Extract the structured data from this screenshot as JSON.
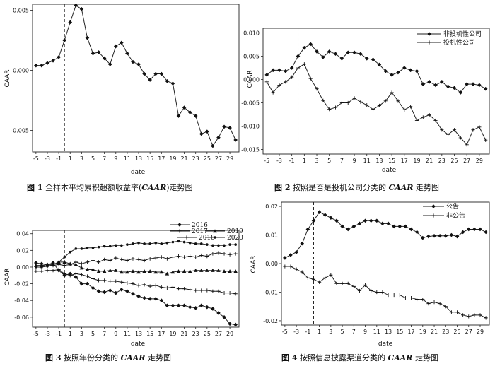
{
  "chart_data": [
    {
      "type": "line",
      "ylabel": "CAAR",
      "xlabel": "date",
      "x": [
        -5,
        -4,
        -3,
        -2,
        -1,
        0,
        1,
        2,
        3,
        4,
        5,
        6,
        7,
        8,
        9,
        10,
        11,
        12,
        13,
        14,
        15,
        16,
        17,
        18,
        19,
        20,
        21,
        22,
        23,
        24,
        25,
        26,
        27,
        28,
        29,
        30
      ],
      "xticks": [
        -5,
        -3,
        -1,
        1,
        3,
        5,
        7,
        9,
        11,
        13,
        15,
        17,
        19,
        21,
        23,
        25,
        27,
        29
      ],
      "ylim": [
        -0.0068,
        0.0055
      ],
      "yticks": [
        0.005,
        0.0,
        -0.005
      ],
      "ytick_labels": [
        "0.005",
        "0.000",
        "-0.005"
      ],
      "event_line_x": 0,
      "series": [
        {
          "marker": "diamond",
          "values": [
            0.0004,
            0.0004,
            0.0006,
            0.0008,
            0.0011,
            0.0025,
            0.004,
            0.0054,
            0.0051,
            0.0027,
            0.0014,
            0.0015,
            0.001,
            0.0005,
            0.002,
            0.0023,
            0.0014,
            0.0007,
            0.0005,
            -0.0003,
            -0.0008,
            -0.0003,
            -0.0003,
            -0.0009,
            -0.0011,
            -0.0038,
            -0.0031,
            -0.0035,
            -0.0038,
            -0.0053,
            -0.0051,
            -0.0063,
            -0.0056,
            -0.0047,
            -0.0048,
            -0.0058
          ]
        }
      ],
      "caption": {
        "number": "图 1",
        "text_a": "全样本平均累积超额收益率(",
        "italic": "CAAR",
        "text_b": ")走势图"
      }
    },
    {
      "type": "line",
      "ylabel": "CAAR",
      "xlabel": "date",
      "x": [
        -5,
        -4,
        -3,
        -2,
        -1,
        0,
        1,
        2,
        3,
        4,
        5,
        6,
        7,
        8,
        9,
        10,
        11,
        12,
        13,
        14,
        15,
        16,
        17,
        18,
        19,
        20,
        21,
        22,
        23,
        24,
        25,
        26,
        27,
        28,
        29,
        30
      ],
      "xticks": [
        -5,
        -3,
        -1,
        1,
        3,
        5,
        7,
        9,
        11,
        13,
        15,
        17,
        19,
        21,
        23,
        25,
        27,
        29
      ],
      "ylim": [
        -0.016,
        0.011
      ],
      "yticks": [
        0.01,
        0.005,
        0.0,
        -0.005,
        -0.01,
        -0.015
      ],
      "ytick_labels": [
        "0.010",
        "0.005",
        "0.000",
        "-0.005",
        "-0.010",
        "-0.015"
      ],
      "event_line_x": 0,
      "legend_position": "top-right",
      "series": [
        {
          "name": "非投机性公司",
          "marker": "diamond",
          "values": [
            0.001,
            0.002,
            0.002,
            0.0018,
            0.0025,
            0.005,
            0.0068,
            0.0076,
            0.006,
            0.0048,
            0.006,
            0.0055,
            0.0045,
            0.0058,
            0.0058,
            0.0055,
            0.0045,
            0.0043,
            0.0032,
            0.0018,
            0.001,
            0.0015,
            0.0025,
            0.002,
            0.0018,
            -0.001,
            -0.0005,
            -0.0012,
            -0.0005,
            -0.0015,
            -0.0018,
            -0.0028,
            -0.001,
            -0.001,
            -0.0012,
            -0.002
          ]
        },
        {
          "name": "投机性公司",
          "marker": "plus",
          "values": [
            -0.0005,
            -0.0028,
            -0.0012,
            -0.0005,
            0.0005,
            0.0025,
            0.0033,
            0.0002,
            -0.002,
            -0.0045,
            -0.0064,
            -0.006,
            -0.005,
            -0.005,
            -0.004,
            -0.0048,
            -0.0055,
            -0.0064,
            -0.0056,
            -0.0046,
            -0.0028,
            -0.0046,
            -0.0065,
            -0.0058,
            -0.0088,
            -0.0081,
            -0.0076,
            -0.0088,
            -0.0108,
            -0.0118,
            -0.0108,
            -0.0125,
            -0.014,
            -0.0108,
            -0.0102,
            -0.013
          ]
        }
      ],
      "caption": {
        "number": "图 2",
        "text_a": "按照是否是投机公司分类的 ",
        "italic": "CAAR",
        "text_b": " 走势图"
      }
    },
    {
      "type": "line",
      "ylabel": "CAAR",
      "xlabel": "date",
      "x": [
        -5,
        -4,
        -3,
        -2,
        -1,
        0,
        1,
        2,
        3,
        4,
        5,
        6,
        7,
        8,
        9,
        10,
        11,
        12,
        13,
        14,
        15,
        16,
        17,
        18,
        19,
        20,
        21,
        22,
        23,
        24,
        25,
        26,
        27,
        28,
        29,
        30
      ],
      "xticks": [
        -5,
        -3,
        -1,
        1,
        3,
        5,
        7,
        9,
        11,
        13,
        15,
        17,
        19,
        21,
        23,
        25,
        27,
        29
      ],
      "ylim": [
        -0.072,
        0.044
      ],
      "yticks": [
        0.04,
        0.02,
        0.0,
        -0.02,
        -0.04,
        -0.06
      ],
      "ytick_labels": [
        "0.04",
        "0.02",
        "0.00",
        "-0.02",
        "-0.04",
        "-0.06"
      ],
      "event_line_x": 0,
      "legend_position": "top-right",
      "series": [
        {
          "name": "2016",
          "marker": "diamond",
          "values": [
            0.005,
            0.004,
            0.003,
            0.005,
            -0.004,
            -0.01,
            -0.008,
            -0.012,
            -0.02,
            -0.02,
            -0.025,
            -0.029,
            -0.03,
            -0.028,
            -0.031,
            -0.027,
            -0.029,
            -0.032,
            -0.035,
            -0.037,
            -0.038,
            -0.038,
            -0.04,
            -0.046,
            -0.046,
            -0.046,
            -0.046,
            -0.048,
            -0.049,
            -0.046,
            -0.048,
            -0.05,
            -0.055,
            -0.06,
            -0.068,
            -0.069
          ]
        },
        {
          "name": "2017",
          "marker": "plus",
          "values": [
            -0.005,
            -0.005,
            -0.004,
            -0.004,
            -0.003,
            -0.008,
            -0.01,
            -0.008,
            -0.009,
            -0.011,
            -0.014,
            -0.016,
            -0.016,
            -0.017,
            -0.017,
            -0.018,
            -0.019,
            -0.02,
            -0.022,
            -0.021,
            -0.023,
            -0.022,
            -0.024,
            -0.025,
            -0.024,
            -0.026,
            -0.026,
            -0.027,
            -0.028,
            -0.028,
            -0.028,
            -0.029,
            -0.029,
            -0.031,
            -0.031,
            -0.032
          ]
        },
        {
          "name": "2018",
          "marker": "plus",
          "values": [
            0.001,
            0.002,
            0.001,
            0.002,
            0.003,
            0.002,
            0.003,
            0.006,
            0.004,
            0.006,
            0.008,
            0.006,
            0.009,
            0.008,
            0.011,
            0.009,
            0.008,
            0.01,
            0.009,
            0.008,
            0.01,
            0.011,
            0.012,
            0.01,
            0.012,
            0.013,
            0.012,
            0.013,
            0.012,
            0.014,
            0.013,
            0.016,
            0.017,
            0.016,
            0.015,
            0.016
          ]
        },
        {
          "name": "2019",
          "marker": "triangle",
          "values": [
            0.002,
            0.002,
            0.003,
            0.003,
            0.006,
            0.006,
            0.004,
            0.003,
            -0.001,
            -0.003,
            -0.003,
            -0.005,
            -0.005,
            -0.004,
            -0.004,
            -0.006,
            -0.006,
            -0.005,
            -0.006,
            -0.005,
            -0.005,
            -0.006,
            -0.006,
            -0.008,
            -0.006,
            -0.005,
            -0.005,
            -0.005,
            -0.004,
            -0.004,
            -0.004,
            -0.004,
            -0.004,
            -0.005,
            -0.005,
            -0.005
          ]
        },
        {
          "name": "2020",
          "marker": "dot",
          "values": [
            0.0,
            0.0,
            0.001,
            0.003,
            0.006,
            0.012,
            0.018,
            0.022,
            0.022,
            0.023,
            0.023,
            0.024,
            0.025,
            0.025,
            0.026,
            0.026,
            0.027,
            0.028,
            0.029,
            0.028,
            0.028,
            0.029,
            0.028,
            0.029,
            0.03,
            0.031,
            0.03,
            0.029,
            0.028,
            0.028,
            0.027,
            0.026,
            0.026,
            0.026,
            0.027,
            0.027
          ]
        }
      ],
      "caption": {
        "number": "图 3",
        "text_a": "按照年份分类的 ",
        "italic": "CAAR",
        "text_b": " 走势图"
      }
    },
    {
      "type": "line",
      "ylabel": "CAAR",
      "xlabel": "date",
      "x": [
        -5,
        -4,
        -3,
        -2,
        -1,
        0,
        1,
        2,
        3,
        4,
        5,
        6,
        7,
        8,
        9,
        10,
        11,
        12,
        13,
        14,
        15,
        16,
        17,
        18,
        19,
        20,
        21,
        22,
        23,
        24,
        25,
        26,
        27,
        28,
        29,
        30
      ],
      "xticks": [
        -5,
        -3,
        -1,
        1,
        3,
        5,
        7,
        9,
        11,
        13,
        15,
        17,
        19,
        21,
        23,
        25,
        27,
        29
      ],
      "ylim": [
        -0.0215,
        0.0215
      ],
      "yticks": [
        0.02,
        0.01,
        0.0,
        -0.01,
        -0.02
      ],
      "ytick_labels": [
        "0.02",
        "0.01",
        "0.00",
        "-0.01",
        "-0.02"
      ],
      "event_line_x": 0,
      "legend_position": "top-right",
      "series": [
        {
          "name": "公告",
          "marker": "diamond",
          "values": [
            0.002,
            0.003,
            0.004,
            0.007,
            0.012,
            0.015,
            0.018,
            0.017,
            0.016,
            0.015,
            0.013,
            0.012,
            0.013,
            0.014,
            0.015,
            0.015,
            0.015,
            0.014,
            0.014,
            0.013,
            0.013,
            0.013,
            0.012,
            0.011,
            0.009,
            0.0095,
            0.0097,
            0.0097,
            0.0097,
            0.01,
            0.0095,
            0.011,
            0.012,
            0.012,
            0.012,
            0.011
          ]
        },
        {
          "name": "非公告",
          "marker": "plus",
          "values": [
            -0.001,
            -0.001,
            -0.002,
            -0.003,
            -0.005,
            -0.0055,
            -0.0065,
            -0.005,
            -0.004,
            -0.007,
            -0.007,
            -0.007,
            -0.008,
            -0.0095,
            -0.0075,
            -0.0095,
            -0.01,
            -0.01,
            -0.011,
            -0.011,
            -0.011,
            -0.012,
            -0.012,
            -0.0125,
            -0.0125,
            -0.014,
            -0.0135,
            -0.014,
            -0.015,
            -0.017,
            -0.017,
            -0.018,
            -0.0185,
            -0.018,
            -0.018,
            -0.019
          ]
        }
      ],
      "caption": {
        "number": "图 4",
        "text_a": "按照信息披露渠道分类的 ",
        "italic": "CAAR",
        "text_b": " 走势图"
      }
    }
  ]
}
